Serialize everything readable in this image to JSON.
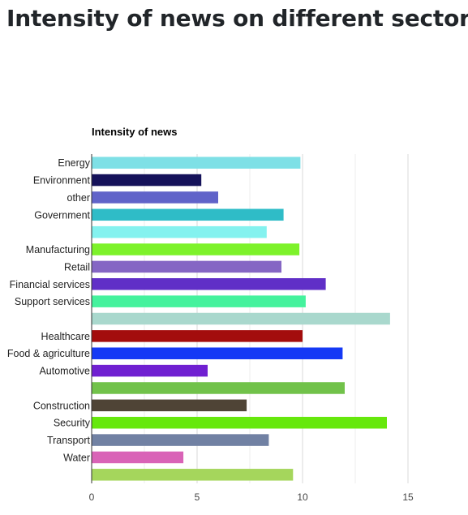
{
  "page": {
    "title": "Intensity of news on different sectors"
  },
  "chart_data": {
    "type": "bar",
    "orientation": "horizontal",
    "title": "Intensity of news",
    "xlabel": "",
    "ylabel": "",
    "xlim": [
      0,
      15
    ],
    "x_ticks": [
      "0",
      "5",
      "10",
      "15"
    ],
    "grid": true,
    "legend": "none",
    "categories": [
      "Energy",
      "Environment",
      "other",
      "Government",
      "",
      "Manufacturing",
      "Retail",
      "Financial services",
      "Support services",
      "",
      "Healthcare",
      "Food & agriculture",
      "Automotive",
      "",
      "Construction",
      "Security",
      "Transport",
      "Water",
      ""
    ],
    "values": [
      9.9,
      5.2,
      6.0,
      9.1,
      8.3,
      9.85,
      9.0,
      11.1,
      10.15,
      14.15,
      10.0,
      11.9,
      5.5,
      12.0,
      7.35,
      14.0,
      8.4,
      4.35,
      9.55
    ],
    "colors": [
      "#7ee0e6",
      "#15125a",
      "#6063c9",
      "#2fbcc7",
      "#84f2ef",
      "#7df22a",
      "#8566c4",
      "#602fc7",
      "#45f29d",
      "#a9d8cd",
      "#a30d0d",
      "#1539f5",
      "#7020d1",
      "#71c24a",
      "#4f4436",
      "#66e80c",
      "#7181a3",
      "#d963b7",
      "#a5d65c"
    ]
  }
}
